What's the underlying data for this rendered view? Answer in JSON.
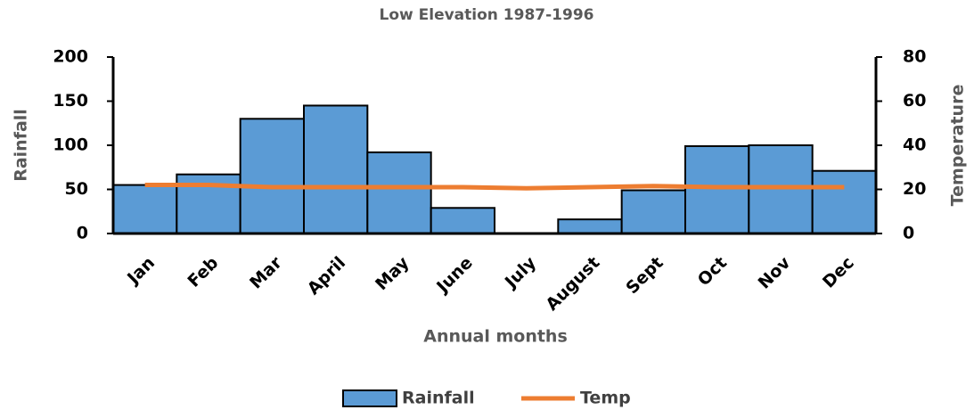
{
  "chart_data": {
    "type": "bar-line",
    "title": "Low Elevation 1987-1996",
    "x_label": "Annual months",
    "y_label": "Rainfall",
    "y2_label": "Temperature",
    "categories": [
      "Jan",
      "Feb",
      "Mar",
      "April",
      "May",
      "June",
      "July",
      "August",
      "Sept",
      "Oct",
      "Nov",
      "Dec"
    ],
    "series": [
      {
        "name": "Rainfall",
        "type": "bar",
        "color": "#5b9bd5",
        "values": [
          55,
          67,
          130,
          145,
          92,
          29,
          0,
          16,
          49,
          99,
          100,
          71
        ]
      },
      {
        "name": "Temp",
        "type": "line",
        "axis": "y2",
        "color": "#ed7d31",
        "values": [
          22,
          22,
          21,
          21,
          21,
          21,
          20.5,
          21,
          21.5,
          21,
          21,
          21
        ]
      }
    ],
    "ylim": [
      0,
      200
    ],
    "yticks": [
      0,
      50,
      100,
      150,
      200
    ],
    "y2lim": [
      0,
      80
    ],
    "y2ticks": [
      0,
      20,
      40,
      60,
      80
    ]
  }
}
